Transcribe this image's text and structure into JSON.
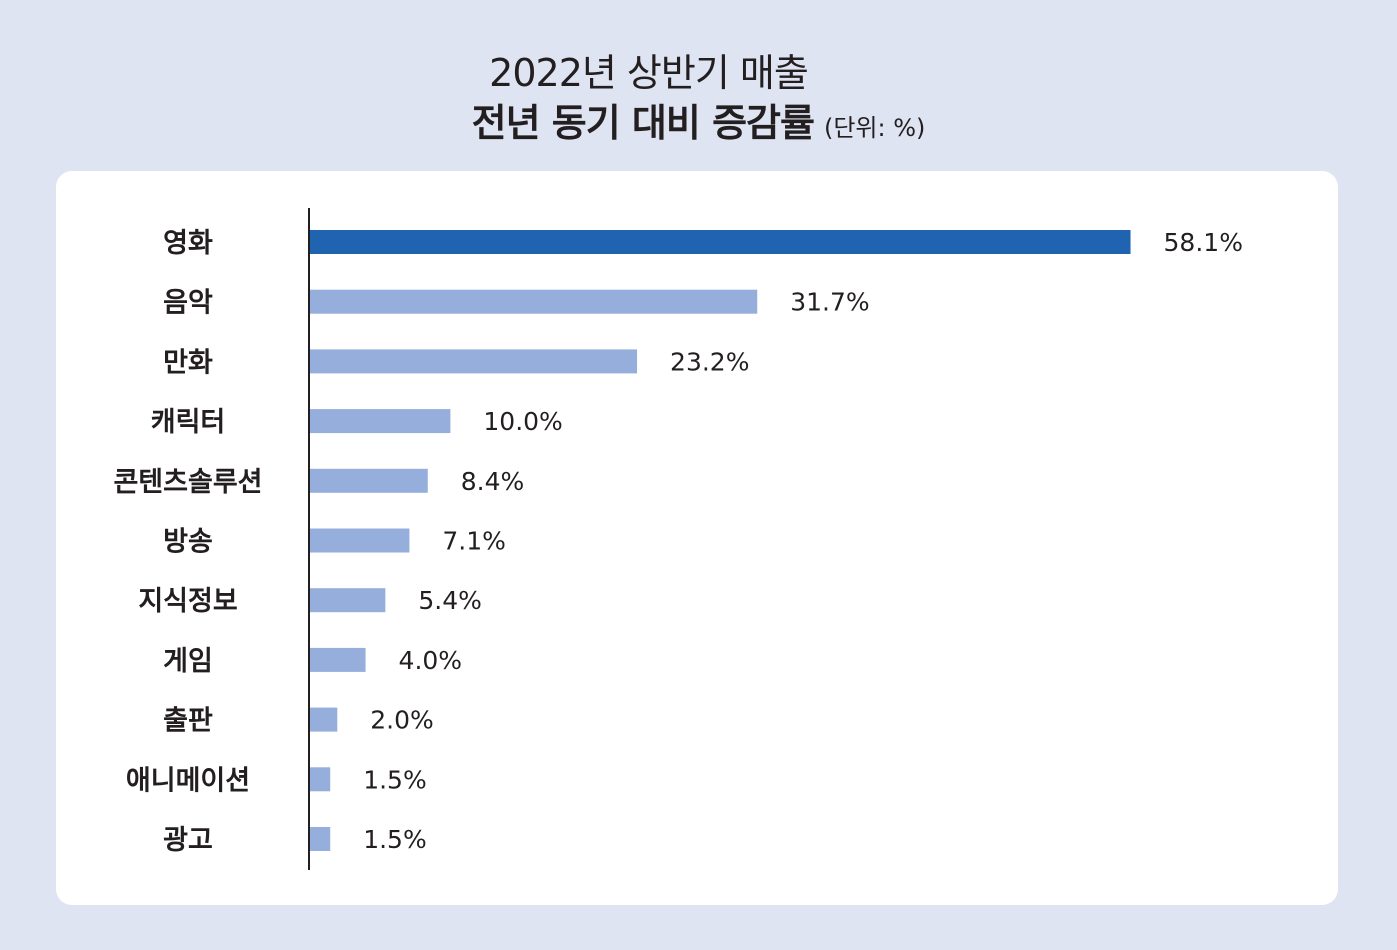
{
  "header": {
    "title_line1": "2022년 상반기 매출",
    "title_line2": "전년 동기 대비 증감률",
    "unit": "(단위: %)"
  },
  "chart_data": {
    "type": "bar",
    "orientation": "horizontal",
    "title": "2022년 상반기 매출 전년 동기 대비 증감률",
    "unit": "(단위: %)",
    "categories": [
      "영화",
      "음악",
      "만화",
      "캐릭터",
      "콘텐츠솔루션",
      "방송",
      "지식정보",
      "게임",
      "출판",
      "애니메이션",
      "광고"
    ],
    "values": [
      58.1,
      31.7,
      23.2,
      10.0,
      8.4,
      7.1,
      5.4,
      4.0,
      2.0,
      1.5,
      1.5
    ],
    "value_labels": [
      "58.1%",
      "31.7%",
      "23.2%",
      "10.0%",
      "8.4%",
      "7.1%",
      "5.4%",
      "4.0%",
      "2.0%",
      "1.5%",
      "1.5%"
    ],
    "highlight_index": 0,
    "colors": {
      "highlight": "#2063b0",
      "bar": "#96aedb",
      "axis": "#231f20",
      "background": "#dfe4f2",
      "panel": "#ffffff"
    },
    "legend": false,
    "grid": false
  }
}
